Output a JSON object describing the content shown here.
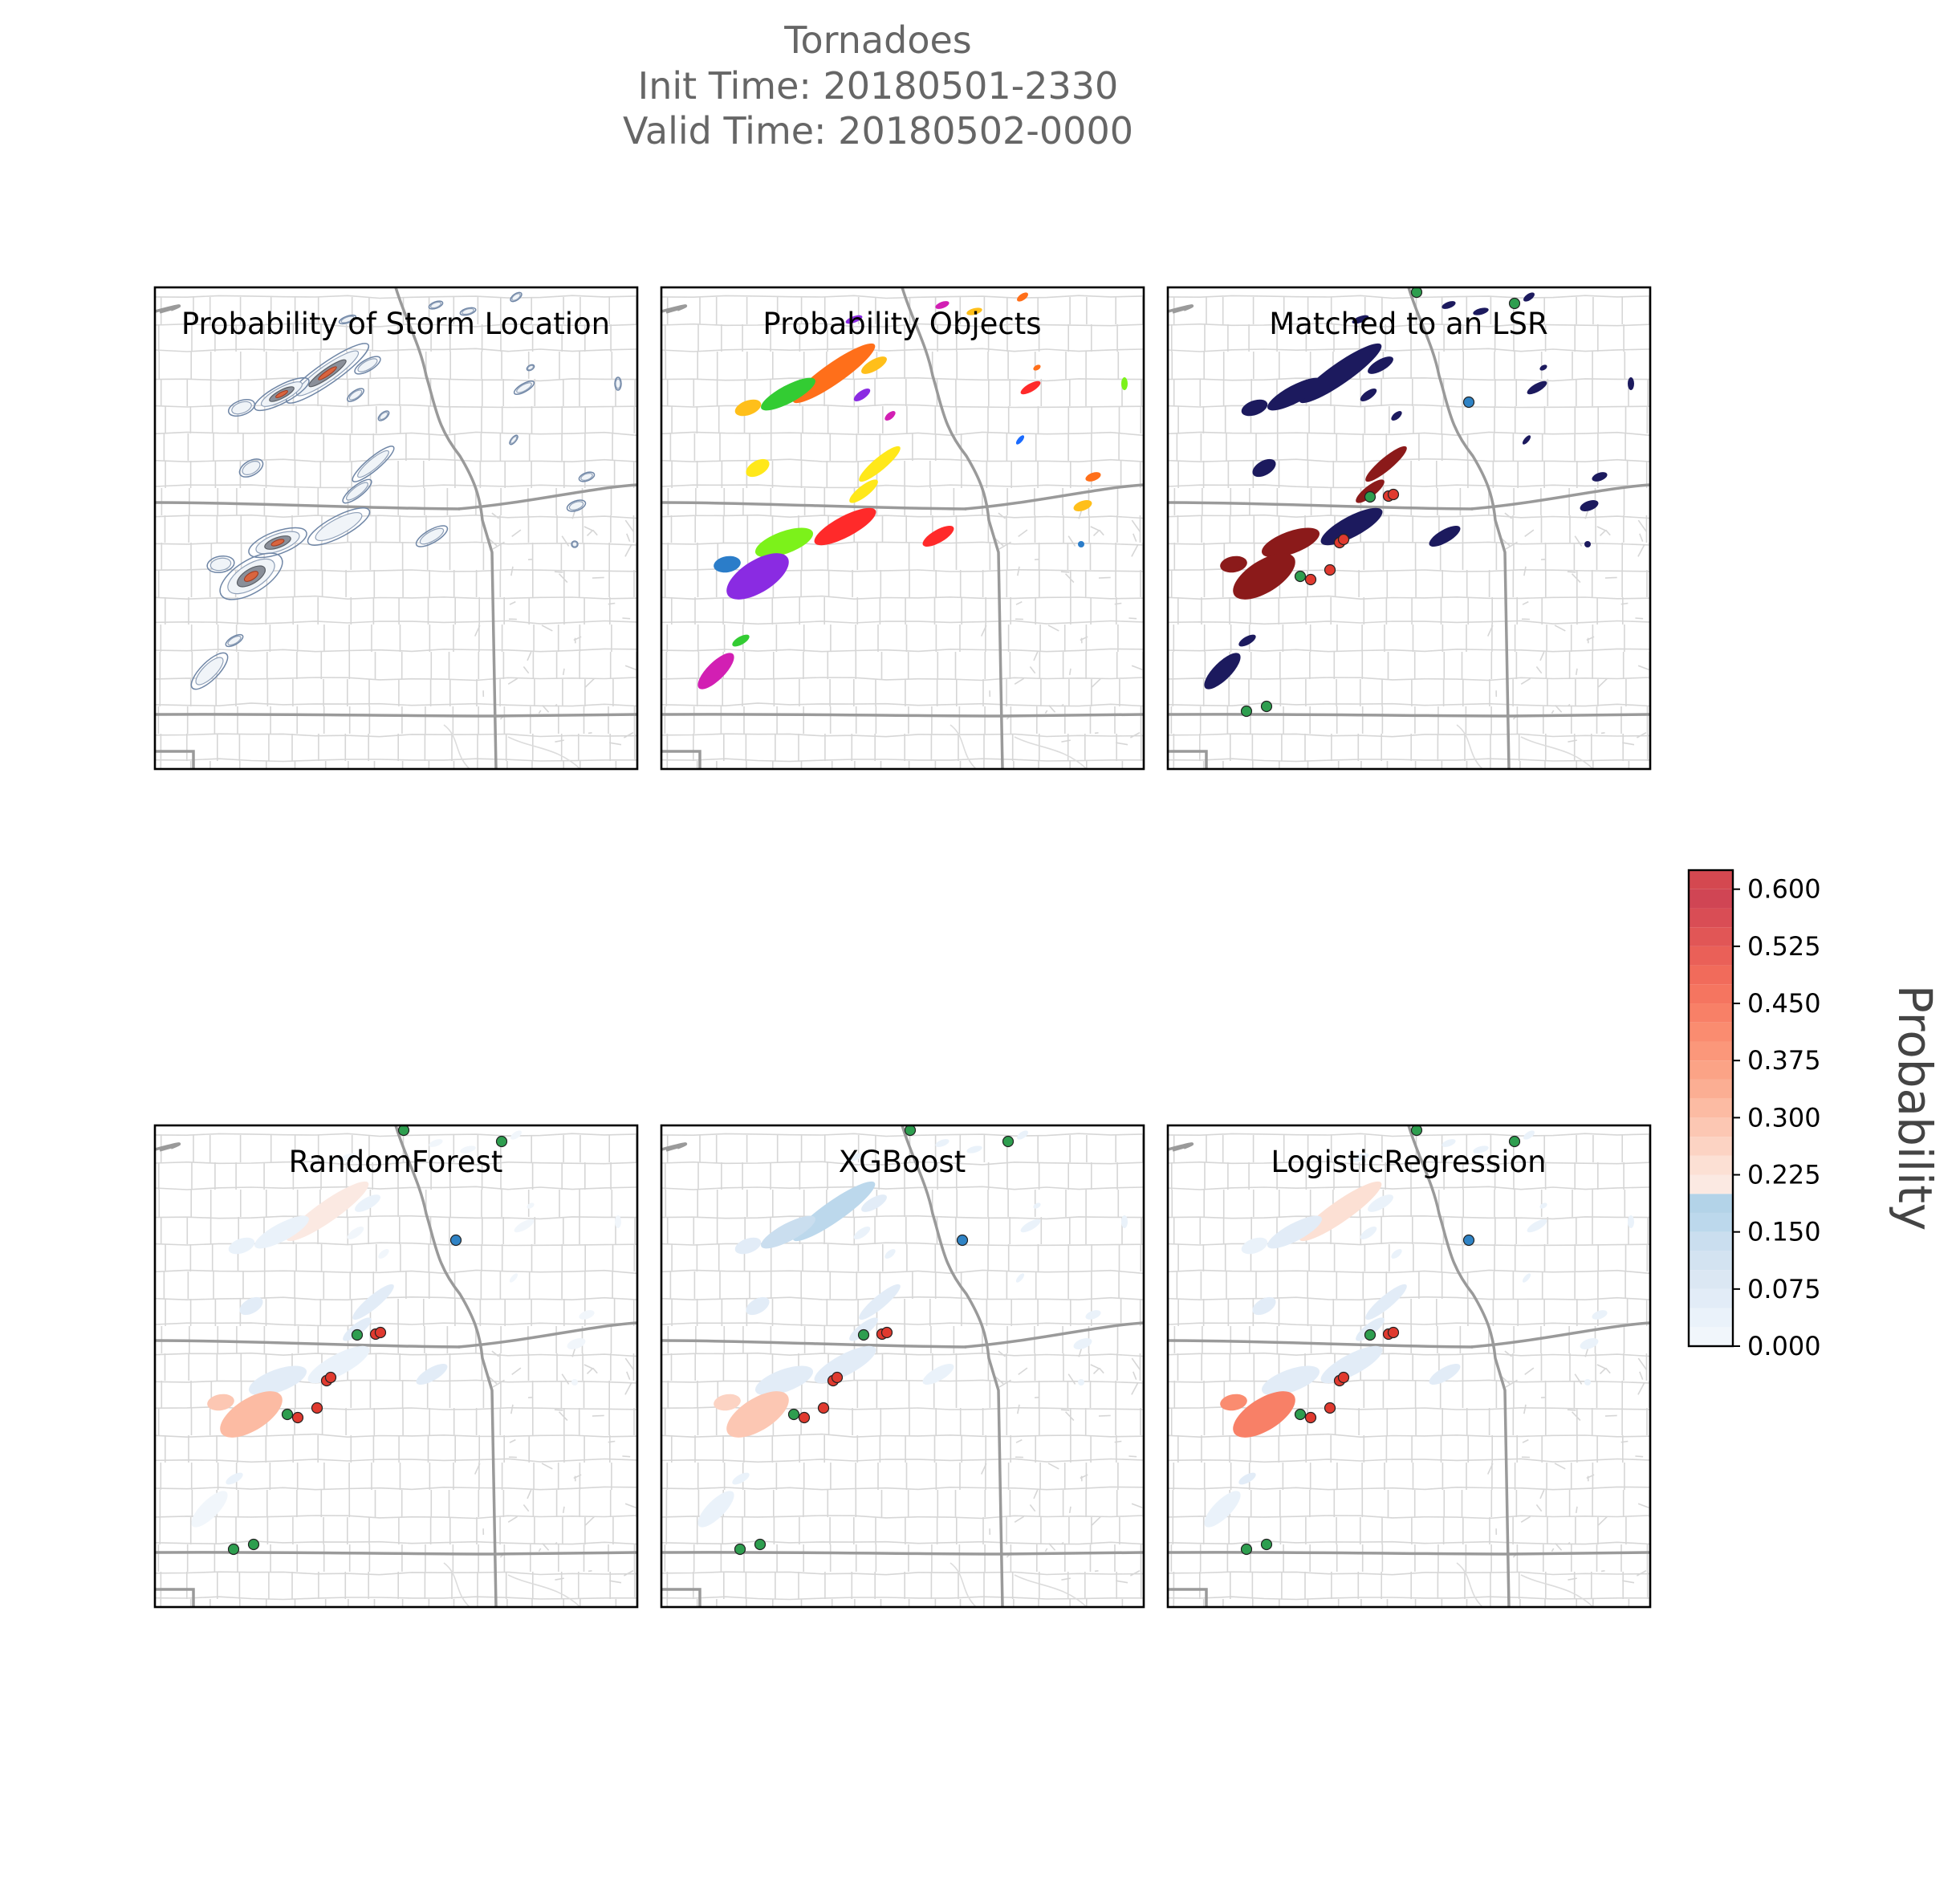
{
  "figure": {
    "title_lines": [
      "Tornadoes",
      "Init Time: 20180501-2330",
      "Valid Time: 20180502-0000"
    ]
  },
  "panels": [
    {
      "id": "storm-location",
      "title": "Probability of Storm Location",
      "mode": "contour"
    },
    {
      "id": "objects",
      "title": "Probability Objects",
      "mode": "objects"
    },
    {
      "id": "matched",
      "title": "Matched to an LSR",
      "mode": "matched"
    },
    {
      "id": "random-forest",
      "title": "RandomForest",
      "mode": "prob",
      "scale": "rf"
    },
    {
      "id": "xgboost",
      "title": "XGBoost",
      "mode": "prob",
      "scale": "xgb"
    },
    {
      "id": "logistic-regression",
      "title": "LogisticRegression",
      "mode": "prob",
      "scale": "lr"
    }
  ],
  "colorbar": {
    "label": "Probability",
    "tick_labels": [
      "0.000",
      "0.075",
      "0.150",
      "0.225",
      "0.300",
      "0.375",
      "0.450",
      "0.525",
      "0.600"
    ],
    "range": [
      0,
      0.625
    ],
    "levels": [
      {
        "from": 0.0,
        "to": 0.025,
        "color": "#f1f6fb"
      },
      {
        "from": 0.025,
        "to": 0.05,
        "color": "#eaf2fa"
      },
      {
        "from": 0.05,
        "to": 0.075,
        "color": "#e2ecf7"
      },
      {
        "from": 0.075,
        "to": 0.1,
        "color": "#dbe7f3"
      },
      {
        "from": 0.1,
        "to": 0.125,
        "color": "#d3e3f1"
      },
      {
        "from": 0.125,
        "to": 0.15,
        "color": "#cadeef"
      },
      {
        "from": 0.15,
        "to": 0.175,
        "color": "#bcd8ec"
      },
      {
        "from": 0.175,
        "to": 0.2,
        "color": "#b3d3e8"
      },
      {
        "from": 0.2,
        "to": 0.225,
        "color": "#fbe9e2"
      },
      {
        "from": 0.225,
        "to": 0.25,
        "color": "#fce0d4"
      },
      {
        "from": 0.25,
        "to": 0.275,
        "color": "#fcd3c3"
      },
      {
        "from": 0.275,
        "to": 0.3,
        "color": "#fcc7b3"
      },
      {
        "from": 0.3,
        "to": 0.325,
        "color": "#fcbba3"
      },
      {
        "from": 0.325,
        "to": 0.35,
        "color": "#fbae93"
      },
      {
        "from": 0.35,
        "to": 0.375,
        "color": "#fba386"
      },
      {
        "from": 0.375,
        "to": 0.4,
        "color": "#fb977a"
      },
      {
        "from": 0.4,
        "to": 0.425,
        "color": "#fa8c70"
      },
      {
        "from": 0.425,
        "to": 0.45,
        "color": "#f88067"
      },
      {
        "from": 0.45,
        "to": 0.475,
        "color": "#f57560"
      },
      {
        "from": 0.475,
        "to": 0.5,
        "color": "#f16b5b"
      },
      {
        "from": 0.5,
        "to": 0.525,
        "color": "#ea6058"
      },
      {
        "from": 0.525,
        "to": 0.55,
        "color": "#e15656"
      },
      {
        "from": 0.55,
        "to": 0.575,
        "color": "#d94d55"
      },
      {
        "from": 0.575,
        "to": 0.6,
        "color": "#d04554"
      },
      {
        "from": 0.6,
        "to": 0.625,
        "color": "#d44850"
      }
    ]
  },
  "colors": {
    "matched_object": "#8b1a1a",
    "unmatched_object": "#1c1a5e",
    "lsr_tornado": "#2e9e4f",
    "lsr_hail": "#2f83c5",
    "lsr_matched": "#e03a2f",
    "contour_outline": "#6f86a6"
  },
  "object_palette": [
    "#2b7dc9",
    "#8a2be2",
    "#7cf21a",
    "#ff2a2a",
    "#ffe81a",
    "#ff6f1a",
    "#1a6bff",
    "#d21fb3",
    "#33cc33",
    "#ffbf1a"
  ]
}
